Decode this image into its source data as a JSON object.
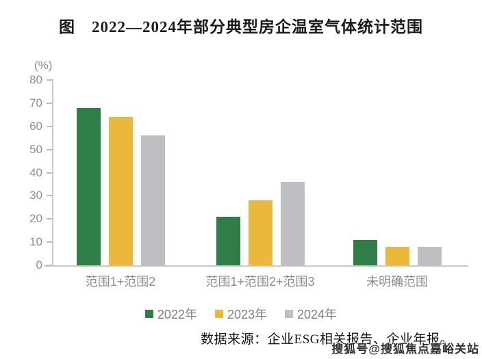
{
  "title": "图　2022—2024年部分典型房企温室气体统计范围",
  "y_unit_label": "(%)",
  "chart_data": {
    "type": "bar",
    "categories": [
      "范围1+范围2",
      "范围1+范围2+范围3",
      "未明确范围"
    ],
    "series": [
      {
        "name": "2022年",
        "color": "#2f7e48",
        "values": [
          68,
          21,
          11
        ]
      },
      {
        "name": "2023年",
        "color": "#ecb83b",
        "values": [
          64,
          28,
          8
        ]
      },
      {
        "name": "2024年",
        "color": "#bfbfc3",
        "values": [
          56,
          36,
          8
        ]
      }
    ],
    "title": "图　2022—2024年部分典型房企温室气体统计范围",
    "xlabel": "",
    "ylabel": "(%)",
    "ylim": [
      0,
      80
    ],
    "yticks": [
      0,
      10,
      20,
      30,
      40,
      50,
      60,
      70,
      80
    ],
    "grid": false,
    "legend_position": "bottom"
  },
  "source_note": "数据来源：企业ESG相关报告、企业年报。",
  "watermark": "搜狐号@搜狐焦点嘉峪关站",
  "colors": {
    "axis_line": "#c9c9c9",
    "tick_text": "#8e8e8e",
    "category_text": "#8c8c8c",
    "legend_text": "#7f7f7f",
    "series_2022": "#2f7e48",
    "series_2023": "#ecb83b",
    "series_2024": "#bfbfc3"
  }
}
